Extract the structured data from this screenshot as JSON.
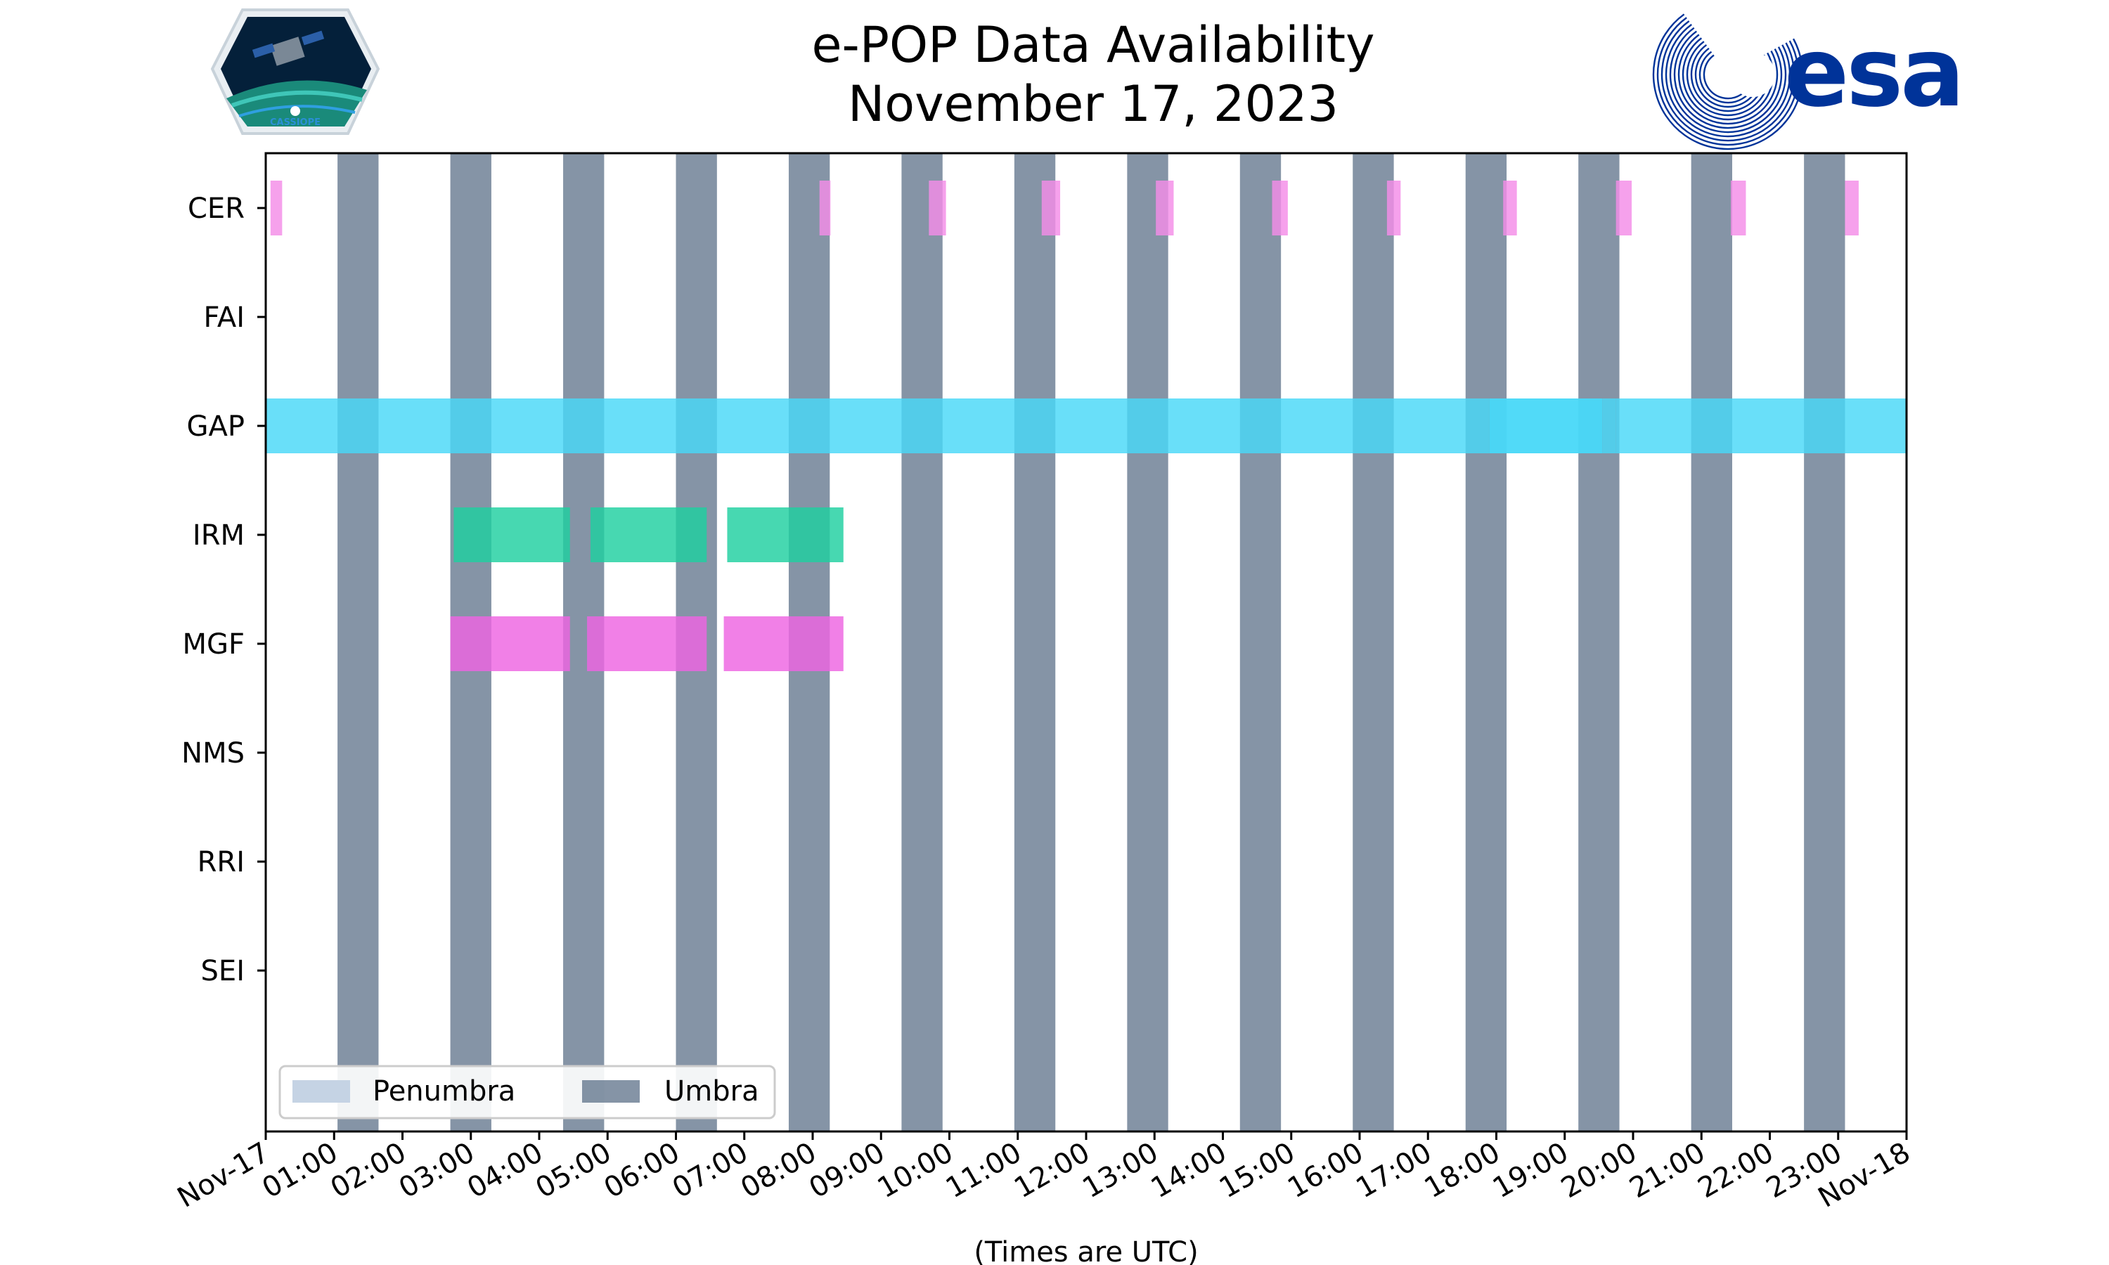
{
  "chart_data": {
    "type": "timeline",
    "title": "e-POP Data Availability",
    "subtitle": "November 17, 2023",
    "xlabel": "(Times are UTC)",
    "x_unit": "hours UTC",
    "xlim": [
      0,
      24
    ],
    "x_tick_labels": [
      "Nov-17",
      "01:00",
      "02:00",
      "03:00",
      "04:00",
      "05:00",
      "06:00",
      "07:00",
      "08:00",
      "09:00",
      "10:00",
      "11:00",
      "12:00",
      "13:00",
      "14:00",
      "15:00",
      "16:00",
      "17:00",
      "18:00",
      "19:00",
      "20:00",
      "21:00",
      "22:00",
      "23:00",
      "Nov-18"
    ],
    "instruments": [
      "CER",
      "FAI",
      "GAP",
      "IRM",
      "MGF",
      "NMS",
      "RRI",
      "SEI"
    ],
    "legend": {
      "placement": "lower-left",
      "entries": [
        {
          "label": "Penumbra",
          "color": "#c5d3e4"
        },
        {
          "label": "Umbra",
          "color": "#5c7088"
        }
      ]
    },
    "umbra_intervals": [
      [
        1.05,
        1.65
      ],
      [
        2.7,
        3.3
      ],
      [
        4.35,
        4.95
      ],
      [
        6.0,
        6.6
      ],
      [
        7.65,
        8.25
      ],
      [
        9.3,
        9.9
      ],
      [
        10.95,
        11.55
      ],
      [
        12.6,
        13.2
      ],
      [
        14.25,
        14.85
      ],
      [
        15.9,
        16.5
      ],
      [
        17.55,
        18.15
      ],
      [
        19.2,
        19.8
      ],
      [
        20.85,
        21.45
      ],
      [
        22.5,
        23.1
      ]
    ],
    "series": [
      {
        "name": "CER",
        "color": "#f48ce8",
        "intervals": [
          [
            0.07,
            0.24
          ],
          [
            8.1,
            8.26
          ],
          [
            9.7,
            9.95
          ],
          [
            11.35,
            11.62
          ],
          [
            13.02,
            13.28
          ],
          [
            14.72,
            14.95
          ],
          [
            16.4,
            16.6
          ],
          [
            18.1,
            18.3
          ],
          [
            19.75,
            19.98
          ],
          [
            21.43,
            21.65
          ],
          [
            23.1,
            23.3
          ]
        ]
      },
      {
        "name": "FAI",
        "color": "#888888",
        "intervals": []
      },
      {
        "name": "GAP",
        "color": "#48d8f8",
        "intervals": [
          [
            0.0,
            17.9
          ],
          [
            17.9,
            19.55
          ],
          [
            19.55,
            19.75
          ],
          [
            19.75,
            24.0
          ]
        ]
      },
      {
        "name": "IRM",
        "color": "#1ecfa0",
        "intervals": [
          [
            2.75,
            4.45
          ],
          [
            4.75,
            6.45
          ],
          [
            6.75,
            8.45
          ]
        ]
      },
      {
        "name": "MGF",
        "color": "#ee64e2",
        "intervals": [
          [
            2.7,
            4.45
          ],
          [
            4.7,
            6.45
          ],
          [
            6.7,
            8.45
          ]
        ]
      },
      {
        "name": "NMS",
        "color": "#888888",
        "intervals": []
      },
      {
        "name": "RRI",
        "color": "#888888",
        "intervals": []
      },
      {
        "name": "SEI",
        "color": "#888888",
        "intervals": []
      }
    ]
  },
  "logos": {
    "left": "CASSIOPE",
    "right": "esa"
  }
}
